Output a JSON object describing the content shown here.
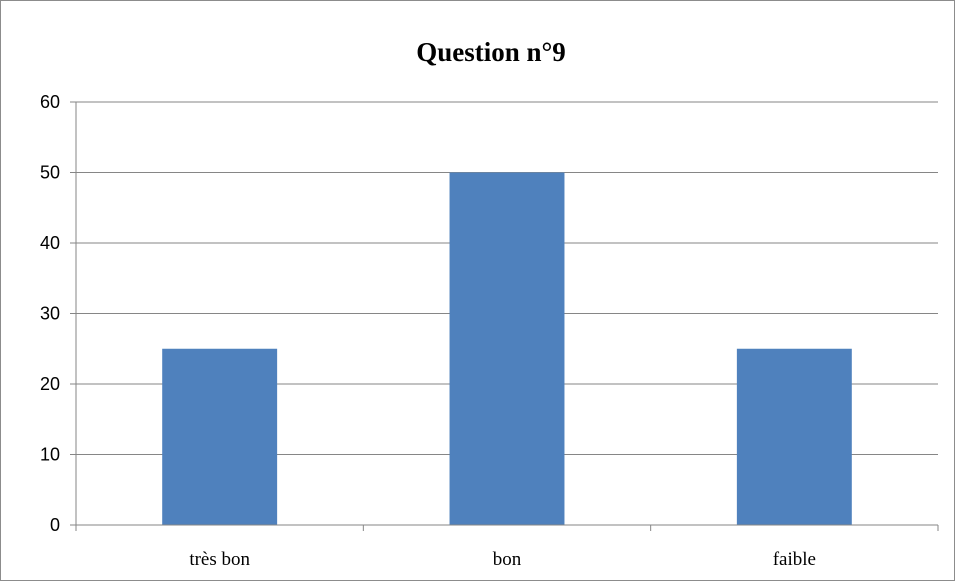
{
  "chart_data": {
    "type": "bar",
    "title": "Question n°9",
    "categories": [
      "très bon",
      "bon",
      "faible"
    ],
    "values": [
      25,
      50,
      25
    ],
    "xlabel": "",
    "ylabel": "",
    "ylim": [
      0,
      60
    ],
    "yticks": [
      0,
      10,
      20,
      30,
      40,
      50,
      60
    ],
    "grid": true,
    "legend": "none",
    "colors": {
      "bar": "#4F81BD",
      "grid": "#868686",
      "axis": "#868686"
    }
  }
}
